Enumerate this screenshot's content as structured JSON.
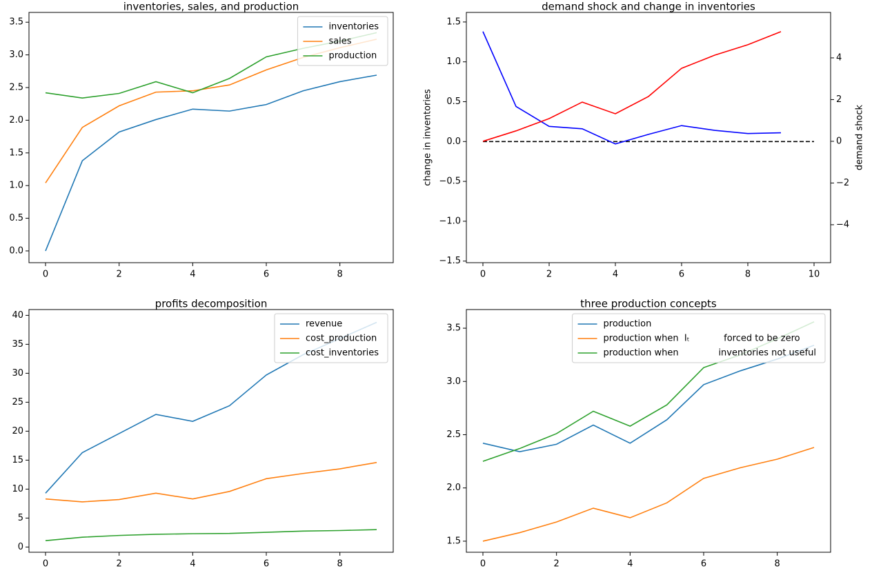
{
  "chart_data": [
    {
      "type": "line",
      "title": "inventories, sales, and production",
      "x": [
        0,
        1,
        2,
        3,
        4,
        5,
        6,
        7,
        8,
        9
      ],
      "series": [
        {
          "name": "inventories",
          "color": "#1f77b4",
          "values": [
            0,
            1.38,
            1.82,
            2.01,
            2.17,
            2.14,
            2.24,
            2.45,
            2.59,
            2.69
          ]
        },
        {
          "name": "sales",
          "color": "#ff7f0e",
          "values": [
            1.04,
            1.89,
            2.22,
            2.43,
            2.45,
            2.54,
            2.77,
            2.96,
            3.11,
            3.24
          ]
        },
        {
          "name": "production",
          "color": "#2ca02c",
          "values": [
            2.42,
            2.34,
            2.41,
            2.59,
            2.42,
            2.64,
            2.97,
            3.1,
            3.21,
            3.34
          ]
        }
      ],
      "xlim": [
        -0.45,
        9.45
      ],
      "xticks": [
        0,
        2,
        4,
        6,
        8
      ],
      "ylim": [
        -0.18,
        3.65
      ],
      "yticks": [
        {
          "value": 0,
          "label": "0.0"
        },
        0.5,
        {
          "value": 1,
          "label": "1.0"
        },
        1.5,
        {
          "value": 2,
          "label": "2.0"
        },
        2.5,
        {
          "value": 3,
          "label": "3.0"
        },
        3.5
      ],
      "legend": "upper right"
    },
    {
      "type": "line",
      "title": "demand shock and change in inventories",
      "x": [
        0,
        1,
        2,
        3,
        4,
        5,
        6,
        7,
        8,
        9
      ],
      "series": [
        {
          "color": "blue",
          "values": [
            1.38,
            0.44,
            0.19,
            0.16,
            -0.03,
            0.09,
            0.2,
            0.14,
            0.1,
            0.11
          ]
        },
        {
          "color": "red",
          "axis": "y2",
          "values": [
            0,
            0.5,
            1.09,
            1.88,
            1.32,
            2.15,
            3.5,
            4.13,
            4.63,
            5.26
          ]
        }
      ],
      "hlines": [
        {
          "y": 0,
          "xmin": 0,
          "xmax": 10,
          "color": "black",
          "dashed": true
        }
      ],
      "xlim": [
        -0.5,
        10.5
      ],
      "xticks": [
        0,
        2,
        4,
        6,
        8,
        10
      ],
      "ylim": [
        -1.52,
        1.62
      ],
      "yticks": [
        {
          "value": -1.5,
          "label": "−1.5"
        },
        {
          "value": -1,
          "label": "−1.0"
        },
        {
          "value": -0.5,
          "label": "−0.5"
        },
        {
          "value": 0,
          "label": "0.0"
        },
        0.5,
        {
          "value": 1,
          "label": "1.0"
        },
        1.5
      ],
      "ylabel": "change in inventories",
      "ylabel_color": "blue",
      "y2lim": [
        -5.82,
        6.18
      ],
      "y2ticks": [
        {
          "value": -4,
          "label": "−4"
        },
        {
          "value": -2,
          "label": "−2"
        },
        0,
        2,
        4
      ],
      "y2label": "demand shock",
      "y2label_color": "red"
    },
    {
      "type": "line",
      "title": "profits decomposition",
      "x": [
        0,
        1,
        2,
        3,
        4,
        5,
        6,
        7,
        8,
        9
      ],
      "series": [
        {
          "name": "revenue",
          "color": "#1f77b4",
          "values": [
            9.3,
            16.3,
            19.6,
            22.9,
            21.7,
            24.4,
            29.7,
            33.2,
            36.0,
            38.8
          ]
        },
        {
          "name": "cost_production",
          "color": "#ff7f0e",
          "values": [
            8.3,
            7.8,
            8.2,
            9.3,
            8.3,
            9.6,
            11.8,
            12.7,
            13.5,
            14.6
          ]
        },
        {
          "name": "cost_inventories",
          "color": "#2ca02c",
          "values": [
            1.1,
            1.7,
            2.0,
            2.2,
            2.3,
            2.35,
            2.55,
            2.75,
            2.85,
            3.0
          ]
        }
      ],
      "xlim": [
        -0.45,
        9.45
      ],
      "xticks": [
        0,
        2,
        4,
        6,
        8
      ],
      "ylim": [
        -0.9,
        41
      ],
      "yticks": [
        0,
        5,
        10,
        15,
        20,
        25,
        30,
        35,
        40
      ],
      "legend": "upper right"
    },
    {
      "type": "line",
      "title": "three production concepts",
      "x": [
        0,
        1,
        2,
        3,
        4,
        5,
        6,
        7,
        8,
        9
      ],
      "series": [
        {
          "name": "production",
          "color": "#1f77b4",
          "values": [
            2.42,
            2.34,
            2.41,
            2.59,
            2.42,
            2.64,
            2.97,
            3.1,
            3.21,
            3.34
          ]
        },
        {
          "name": "production when  Iₜ            forced to be zero",
          "color": "#ff7f0e",
          "values": [
            1.5,
            1.58,
            1.68,
            1.81,
            1.72,
            1.86,
            2.09,
            2.19,
            2.27,
            2.38
          ]
        },
        {
          "name": "production when              inventories not useful",
          "color": "#2ca02c",
          "values": [
            2.25,
            2.37,
            2.51,
            2.72,
            2.58,
            2.78,
            3.13,
            3.25,
            3.4,
            3.56
          ]
        }
      ],
      "xlim": [
        -0.45,
        9.45
      ],
      "xticks": [
        0,
        2,
        4,
        6,
        8
      ],
      "ylim": [
        1.396,
        3.675
      ],
      "yticks": [
        1.5,
        {
          "value": 2,
          "label": "2.0"
        },
        2.5,
        {
          "value": 3,
          "label": "3.0"
        },
        3.5
      ],
      "legend": "upper right"
    }
  ]
}
